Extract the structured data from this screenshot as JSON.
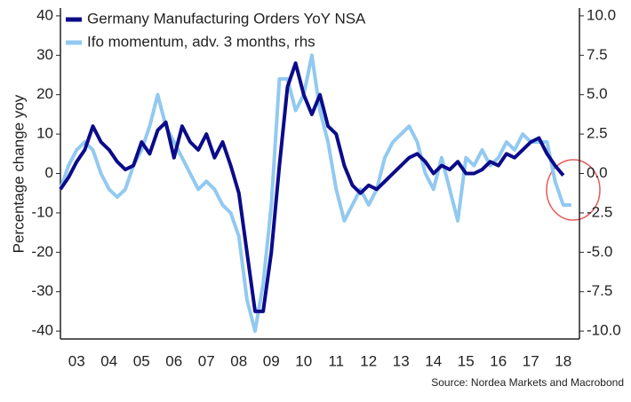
{
  "chart_data": {
    "type": "line",
    "title": "",
    "y_label": "Percentage change yoy",
    "source": "Source: Nordea Markets and Macrobond",
    "x": [
      2003.0,
      2003.25,
      2003.5,
      2003.75,
      2004.0,
      2004.25,
      2004.5,
      2004.75,
      2005.0,
      2005.25,
      2005.5,
      2005.75,
      2006.0,
      2006.25,
      2006.5,
      2006.75,
      2007.0,
      2007.25,
      2007.5,
      2007.75,
      2008.0,
      2008.25,
      2008.5,
      2008.75,
      2009.0,
      2009.25,
      2009.5,
      2009.75,
      2010.0,
      2010.25,
      2010.5,
      2010.75,
      2011.0,
      2011.25,
      2011.5,
      2011.75,
      2012.0,
      2012.25,
      2012.5,
      2012.75,
      2013.0,
      2013.25,
      2013.5,
      2013.75,
      2014.0,
      2014.25,
      2014.5,
      2014.75,
      2015.0,
      2015.25,
      2015.5,
      2015.75,
      2016.0,
      2016.25,
      2016.5,
      2016.75,
      2017.0,
      2017.25,
      2017.5,
      2017.75,
      2018.0,
      2018.25,
      2018.5,
      2018.75
    ],
    "series": [
      {
        "name": "Germany Manufacturing Orders YoY NSA",
        "color": "#0b0b8a",
        "axis": "y",
        "values": [
          -4,
          -1,
          3,
          6,
          12,
          8,
          6,
          3,
          1,
          2,
          8,
          5,
          11,
          13,
          4,
          12,
          8,
          6,
          10,
          4,
          8,
          2,
          -5,
          -20,
          -35,
          -35,
          -20,
          2,
          22,
          28,
          20,
          15,
          20,
          12,
          10,
          2,
          -3,
          -5,
          -3,
          -4,
          -2,
          0,
          2,
          4,
          5,
          3,
          0,
          2,
          1,
          3,
          0,
          0,
          1,
          3,
          2,
          5,
          4,
          6,
          8,
          9,
          5,
          2,
          -0.5,
          null
        ]
      },
      {
        "name": "Ifo momentum, adv. 3 months, rhs",
        "color": "#92c9f0",
        "axis": "y2",
        "values": [
          -1,
          0.5,
          1.5,
          2,
          1.5,
          0,
          -1,
          -1.5,
          -1,
          0.5,
          1.5,
          3,
          5,
          3,
          2,
          1,
          0,
          -1,
          -0.5,
          -1,
          -2,
          -2.5,
          -4,
          -8,
          -10,
          -7,
          -2,
          6,
          6,
          4,
          5,
          7.5,
          4,
          2,
          -1,
          -3,
          -2,
          -1,
          -2,
          -1,
          1,
          2,
          2.5,
          3,
          2,
          0,
          -1,
          1,
          -1,
          -3,
          1,
          0.5,
          1.5,
          0.5,
          1,
          2,
          1.5,
          2.5,
          2,
          2,
          2,
          -0.5,
          -2,
          -2
        ]
      }
    ],
    "xlim": [
      2003,
      2019
    ],
    "xticks": [
      {
        "value": 2003.5,
        "label": "03"
      },
      {
        "value": 2004.5,
        "label": "04"
      },
      {
        "value": 2005.5,
        "label": "05"
      },
      {
        "value": 2006.5,
        "label": "06"
      },
      {
        "value": 2007.5,
        "label": "07"
      },
      {
        "value": 2008.5,
        "label": "08"
      },
      {
        "value": 2009.5,
        "label": "09"
      },
      {
        "value": 2010.5,
        "label": "10"
      },
      {
        "value": 2011.5,
        "label": "11"
      },
      {
        "value": 2012.5,
        "label": "12"
      },
      {
        "value": 2013.5,
        "label": "13"
      },
      {
        "value": 2014.5,
        "label": "14"
      },
      {
        "value": 2015.5,
        "label": "15"
      },
      {
        "value": 2016.5,
        "label": "16"
      },
      {
        "value": 2017.5,
        "label": "17"
      },
      {
        "value": 2018.5,
        "label": "18"
      }
    ],
    "ylim": [
      -42,
      42
    ],
    "yticks": [
      40,
      30,
      20,
      10,
      0,
      -10,
      -20,
      -30,
      -40
    ],
    "y2lim": [
      -10.5,
      10.5
    ],
    "y2ticks": [
      {
        "value": 10,
        "label": "10.0"
      },
      7.5,
      {
        "value": 5,
        "label": "5.0"
      },
      2.5,
      {
        "value": 0,
        "label": "0.0"
      },
      -2.5,
      {
        "value": -5,
        "label": "-5.0"
      },
      -7.5,
      {
        "value": -10,
        "label": "-10.0"
      }
    ],
    "legend": "top-left"
  }
}
